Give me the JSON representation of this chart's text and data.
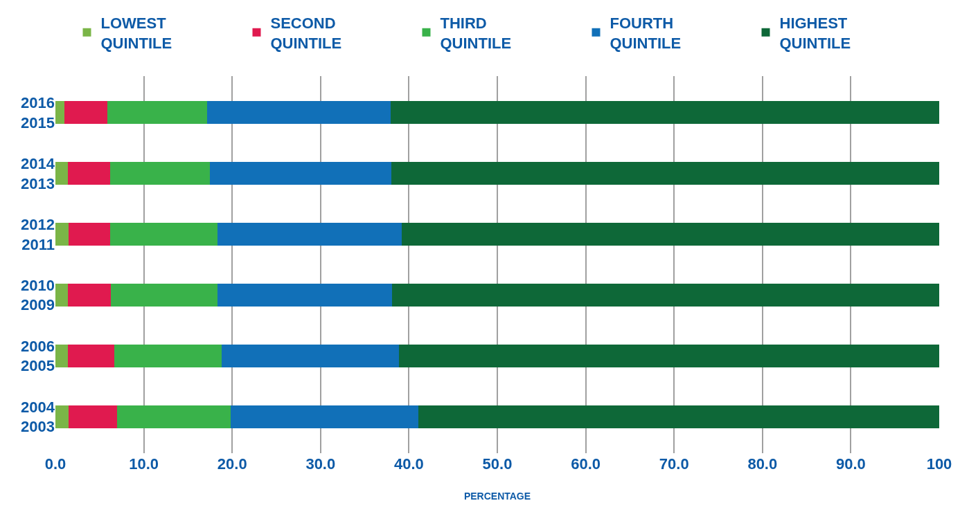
{
  "chart_data": {
    "type": "bar",
    "orientation": "horizontal",
    "stacked": true,
    "categories": [
      "2016\n2015",
      "2014\n2013",
      "2012\n2011",
      "2010\n2009",
      "2006\n2005",
      "2004\n2003"
    ],
    "series": [
      {
        "name": "LOWEST\nQUINTILE",
        "color": "#7ab547",
        "values": [
          1.0,
          1.4,
          1.5,
          1.4,
          1.4,
          1.5
        ]
      },
      {
        "name": "SECOND\nQUINTILE",
        "color": "#e01a4f",
        "values": [
          4.9,
          4.8,
          4.7,
          4.9,
          5.3,
          5.5
        ]
      },
      {
        "name": "THIRD\nQUINTILE",
        "color": "#39b24a",
        "values": [
          11.3,
          11.3,
          12.1,
          12.0,
          12.1,
          12.8
        ]
      },
      {
        "name": "FOURTH\nQUINTILE",
        "color": "#1170b8",
        "values": [
          20.7,
          20.5,
          20.9,
          19.8,
          20.1,
          21.3
        ]
      },
      {
        "name": "HIGHEST\nQUINTILE",
        "color": "#0e6838",
        "values": [
          62.1,
          62.0,
          60.8,
          61.9,
          61.1,
          58.9
        ]
      }
    ],
    "xlabel": "PERCENTAGE",
    "xlim": [
      0,
      100
    ],
    "xticks": [
      {
        "value": 0,
        "label": "0.0"
      },
      {
        "value": 10,
        "label": "10.0"
      },
      {
        "value": 20,
        "label": "20.0"
      },
      {
        "value": 30,
        "label": "30.0"
      },
      {
        "value": 40,
        "label": "40.0"
      },
      {
        "value": 50,
        "label": "50.0"
      },
      {
        "value": 60,
        "label": "60.0"
      },
      {
        "value": 70,
        "label": "70.0"
      },
      {
        "value": 80,
        "label": "80.0"
      },
      {
        "value": 90,
        "label": "90.0"
      },
      {
        "value": 100,
        "label": "100"
      }
    ],
    "grid": "x",
    "legend": "top"
  }
}
